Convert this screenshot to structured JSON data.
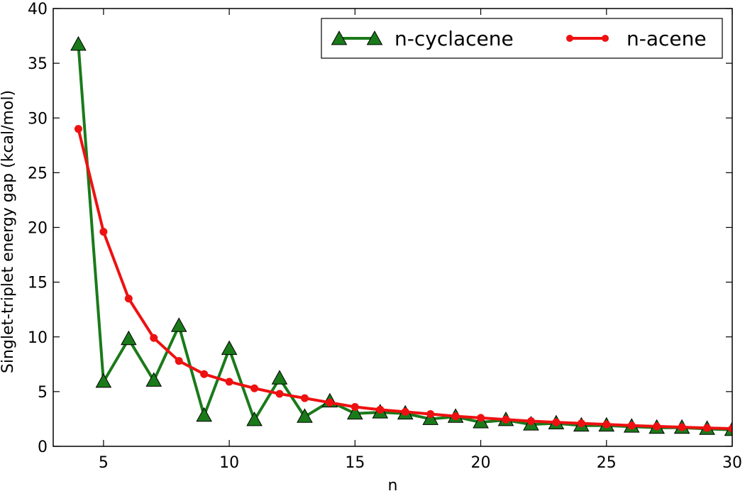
{
  "chart_data": {
    "type": "line",
    "title": "",
    "xlabel": "n",
    "ylabel": "Singlet-triplet energy gap (kcal/mol)",
    "xlim": [
      3,
      30
    ],
    "ylim": [
      0,
      40
    ],
    "xticks": [
      5,
      10,
      15,
      20,
      25,
      30
    ],
    "yticks": [
      0,
      5,
      10,
      15,
      20,
      25,
      30,
      35,
      40
    ],
    "grid": false,
    "legend_position": "top-right",
    "series": [
      {
        "name": "n-cyclacene",
        "color": "#1a7a1a",
        "marker": "triangle",
        "x": [
          4,
          5,
          6,
          7,
          8,
          9,
          10,
          11,
          12,
          13,
          14,
          15,
          16,
          17,
          18,
          19,
          20,
          21,
          22,
          23,
          24,
          25,
          26,
          27,
          28,
          29,
          30
        ],
        "y": [
          36.7,
          5.9,
          9.8,
          6.0,
          11.0,
          2.8,
          8.9,
          2.4,
          6.2,
          2.7,
          4.1,
          3.0,
          3.1,
          3.0,
          2.5,
          2.7,
          2.2,
          2.4,
          2.0,
          2.1,
          1.9,
          1.9,
          1.8,
          1.7,
          1.7,
          1.6,
          1.5
        ]
      },
      {
        "name": "n-acene",
        "color": "#ee1111",
        "marker": "circle",
        "x": [
          4,
          5,
          6,
          7,
          8,
          9,
          10,
          11,
          12,
          13,
          14,
          15,
          16,
          17,
          18,
          19,
          20,
          21,
          22,
          23,
          24,
          25,
          26,
          27,
          28,
          29,
          30
        ],
        "y": [
          29.0,
          19.6,
          13.5,
          9.9,
          7.8,
          6.6,
          5.9,
          5.3,
          4.8,
          4.4,
          4.0,
          3.6,
          3.35,
          3.15,
          2.95,
          2.75,
          2.6,
          2.45,
          2.3,
          2.2,
          2.1,
          2.0,
          1.9,
          1.82,
          1.75,
          1.68,
          1.62
        ]
      }
    ]
  }
}
